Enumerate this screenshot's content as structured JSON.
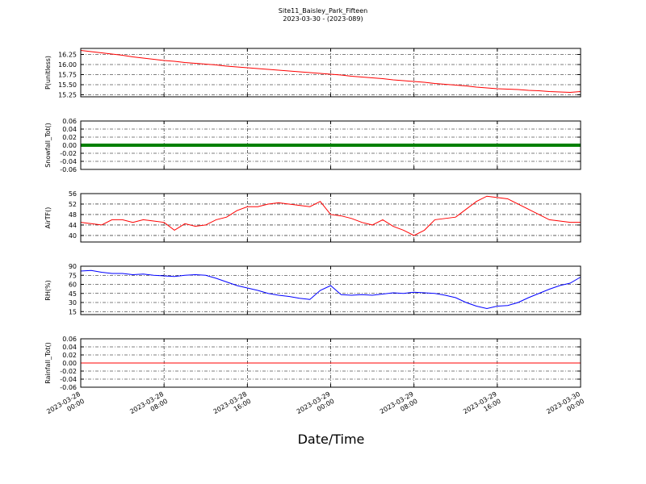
{
  "chart_data": [
    {
      "type": "line",
      "title": "Site11_Baisley_Park_Fifteen",
      "subtitle": "2023-03-30 - (2023-089)",
      "ylabel": "P(unitless)",
      "color": "#ff0000",
      "x": [
        "2023-03-28 00:00",
        "2023-03-28 01:00",
        "2023-03-28 02:00",
        "2023-03-28 03:00",
        "2023-03-28 04:00",
        "2023-03-28 05:00",
        "2023-03-28 06:00",
        "2023-03-28 07:00",
        "2023-03-28 08:00",
        "2023-03-28 09:00",
        "2023-03-28 10:00",
        "2023-03-28 11:00",
        "2023-03-28 12:00",
        "2023-03-28 13:00",
        "2023-03-28 14:00",
        "2023-03-28 15:00",
        "2023-03-28 16:00",
        "2023-03-28 17:00",
        "2023-03-28 18:00",
        "2023-03-28 19:00",
        "2023-03-28 20:00",
        "2023-03-28 21:00",
        "2023-03-28 22:00",
        "2023-03-28 23:00",
        "2023-03-29 00:00",
        "2023-03-29 01:00",
        "2023-03-29 02:00",
        "2023-03-29 03:00",
        "2023-03-29 04:00",
        "2023-03-29 05:00",
        "2023-03-29 06:00",
        "2023-03-29 07:00",
        "2023-03-29 08:00",
        "2023-03-29 09:00",
        "2023-03-29 10:00",
        "2023-03-29 11:00",
        "2023-03-29 12:00",
        "2023-03-29 13:00",
        "2023-03-29 14:00",
        "2023-03-29 15:00",
        "2023-03-29 16:00",
        "2023-03-29 17:00",
        "2023-03-29 18:00",
        "2023-03-29 19:00",
        "2023-03-29 20:00",
        "2023-03-29 21:00",
        "2023-03-29 22:00",
        "2023-03-29 23:00",
        "2023-03-30 00:00"
      ],
      "values": [
        16.35,
        16.32,
        16.29,
        16.26,
        16.23,
        16.19,
        16.16,
        16.13,
        16.1,
        16.08,
        16.05,
        16.03,
        16.01,
        15.99,
        15.96,
        15.94,
        15.92,
        15.9,
        15.88,
        15.86,
        15.84,
        15.82,
        15.8,
        15.78,
        15.76,
        15.74,
        15.71,
        15.69,
        15.67,
        15.65,
        15.62,
        15.6,
        15.58,
        15.56,
        15.53,
        15.51,
        15.49,
        15.47,
        15.44,
        15.42,
        15.4,
        15.39,
        15.38,
        15.36,
        15.35,
        15.33,
        15.32,
        15.31,
        15.33
      ],
      "ylim": [
        15.2,
        16.4
      ],
      "yticks": [
        15.25,
        {
          "value": 15.5,
          "label": "15.50"
        },
        15.75,
        {
          "value": 16,
          "label": "16.00"
        },
        16.25
      ],
      "grid": true
    },
    {
      "type": "line",
      "ylabel": "Snowfall_Tot()",
      "color": "#008000",
      "x": [
        "2023-03-28 00:00",
        "2023-03-28 01:00",
        "2023-03-28 02:00",
        "2023-03-28 03:00",
        "2023-03-28 04:00",
        "2023-03-28 05:00",
        "2023-03-28 06:00",
        "2023-03-28 07:00",
        "2023-03-28 08:00",
        "2023-03-28 09:00",
        "2023-03-28 10:00",
        "2023-03-28 11:00",
        "2023-03-28 12:00",
        "2023-03-28 13:00",
        "2023-03-28 14:00",
        "2023-03-28 15:00",
        "2023-03-28 16:00",
        "2023-03-28 17:00",
        "2023-03-28 18:00",
        "2023-03-28 19:00",
        "2023-03-28 20:00",
        "2023-03-28 21:00",
        "2023-03-28 22:00",
        "2023-03-28 23:00",
        "2023-03-29 00:00",
        "2023-03-29 01:00",
        "2023-03-29 02:00",
        "2023-03-29 03:00",
        "2023-03-29 04:00",
        "2023-03-29 05:00",
        "2023-03-29 06:00",
        "2023-03-29 07:00",
        "2023-03-29 08:00",
        "2023-03-29 09:00",
        "2023-03-29 10:00",
        "2023-03-29 11:00",
        "2023-03-29 12:00",
        "2023-03-29 13:00",
        "2023-03-29 14:00",
        "2023-03-29 15:00",
        "2023-03-29 16:00",
        "2023-03-29 17:00",
        "2023-03-29 18:00",
        "2023-03-29 19:00",
        "2023-03-29 20:00",
        "2023-03-29 21:00",
        "2023-03-29 22:00",
        "2023-03-29 23:00",
        "2023-03-30 00:00"
      ],
      "values": [
        0,
        0,
        0,
        0,
        0,
        0,
        0,
        0,
        0,
        0,
        0,
        0,
        0,
        0,
        0,
        0,
        0,
        0,
        0,
        0,
        0,
        0,
        0,
        0,
        0,
        0,
        0,
        0,
        0,
        0,
        0,
        0,
        0,
        0,
        0,
        0,
        0,
        0,
        0,
        0,
        0,
        0,
        0,
        0,
        0,
        0,
        0,
        0,
        0
      ],
      "ylim": [
        -0.06,
        0.06
      ],
      "yticks": [
        -0.06,
        -0.04,
        -0.02,
        {
          "value": 0,
          "label": "0.00"
        },
        0.02,
        0.04,
        0.06
      ],
      "grid": true
    },
    {
      "type": "line",
      "ylabel": "AirTF()",
      "color": "#ff0000",
      "x": [
        "2023-03-28 00:00",
        "2023-03-28 01:00",
        "2023-03-28 02:00",
        "2023-03-28 03:00",
        "2023-03-28 04:00",
        "2023-03-28 05:00",
        "2023-03-28 06:00",
        "2023-03-28 07:00",
        "2023-03-28 08:00",
        "2023-03-28 09:00",
        "2023-03-28 10:00",
        "2023-03-28 11:00",
        "2023-03-28 12:00",
        "2023-03-28 13:00",
        "2023-03-28 14:00",
        "2023-03-28 15:00",
        "2023-03-28 16:00",
        "2023-03-28 17:00",
        "2023-03-28 18:00",
        "2023-03-28 19:00",
        "2023-03-28 20:00",
        "2023-03-28 21:00",
        "2023-03-28 22:00",
        "2023-03-28 23:00",
        "2023-03-29 00:00",
        "2023-03-29 01:00",
        "2023-03-29 02:00",
        "2023-03-29 03:00",
        "2023-03-29 04:00",
        "2023-03-29 05:00",
        "2023-03-29 06:00",
        "2023-03-29 07:00",
        "2023-03-29 08:00",
        "2023-03-29 09:00",
        "2023-03-29 10:00",
        "2023-03-29 11:00",
        "2023-03-29 12:00",
        "2023-03-29 13:00",
        "2023-03-29 14:00",
        "2023-03-29 15:00",
        "2023-03-29 16:00",
        "2023-03-29 17:00",
        "2023-03-29 18:00",
        "2023-03-29 19:00",
        "2023-03-29 20:00",
        "2023-03-29 21:00",
        "2023-03-29 22:00",
        "2023-03-29 23:00",
        "2023-03-30 00:00"
      ],
      "values": [
        45,
        44.5,
        44,
        46,
        46,
        45,
        46,
        45.5,
        45,
        42,
        44.5,
        43.5,
        44,
        46,
        47,
        49.5,
        51,
        51,
        52,
        52.5,
        52,
        51.5,
        51,
        53,
        48,
        47.5,
        46.5,
        45,
        44,
        46,
        43.5,
        42,
        40,
        42,
        46,
        46.5,
        47,
        50,
        53,
        55,
        54.5,
        54,
        52,
        50,
        48,
        46,
        45.5,
        45,
        45
      ],
      "ylim": [
        37.5,
        56
      ],
      "yticks": [
        40,
        44,
        48,
        52,
        56
      ],
      "grid": true
    },
    {
      "type": "line",
      "ylabel": "RH(%)",
      "color": "#0000ff",
      "x": [
        "2023-03-28 00:00",
        "2023-03-28 01:00",
        "2023-03-28 02:00",
        "2023-03-28 03:00",
        "2023-03-28 04:00",
        "2023-03-28 05:00",
        "2023-03-28 06:00",
        "2023-03-28 07:00",
        "2023-03-28 08:00",
        "2023-03-28 09:00",
        "2023-03-28 10:00",
        "2023-03-28 11:00",
        "2023-03-28 12:00",
        "2023-03-28 13:00",
        "2023-03-28 14:00",
        "2023-03-28 15:00",
        "2023-03-28 16:00",
        "2023-03-28 17:00",
        "2023-03-28 18:00",
        "2023-03-28 19:00",
        "2023-03-28 20:00",
        "2023-03-28 21:00",
        "2023-03-28 22:00",
        "2023-03-28 23:00",
        "2023-03-29 00:00",
        "2023-03-29 01:00",
        "2023-03-29 02:00",
        "2023-03-29 03:00",
        "2023-03-29 04:00",
        "2023-03-29 05:00",
        "2023-03-29 06:00",
        "2023-03-29 07:00",
        "2023-03-29 08:00",
        "2023-03-29 09:00",
        "2023-03-29 10:00",
        "2023-03-29 11:00",
        "2023-03-29 12:00",
        "2023-03-29 13:00",
        "2023-03-29 14:00",
        "2023-03-29 15:00",
        "2023-03-29 16:00",
        "2023-03-29 17:00",
        "2023-03-29 18:00",
        "2023-03-29 19:00",
        "2023-03-29 20:00",
        "2023-03-29 21:00",
        "2023-03-29 22:00",
        "2023-03-29 23:00",
        "2023-03-30 00:00"
      ],
      "values": [
        82,
        83,
        80,
        78,
        78,
        76,
        77,
        75,
        74,
        73,
        75,
        76,
        75,
        70,
        64,
        58,
        54,
        50,
        45,
        42,
        40,
        37,
        35,
        50,
        58,
        43,
        42,
        43,
        42,
        44,
        46,
        45,
        47,
        46,
        45,
        42,
        38,
        30,
        24,
        20,
        24,
        25,
        30,
        38,
        45,
        52,
        58,
        62,
        72
      ],
      "ylim": [
        10,
        90
      ],
      "yticks": [
        15,
        30,
        45,
        60,
        75,
        90
      ],
      "grid": true
    },
    {
      "type": "line",
      "ylabel": "Rainfall_Tot()",
      "xlabel": "Date/Time",
      "color": "#ff0000",
      "x": [
        "2023-03-28 00:00",
        "2023-03-28 01:00",
        "2023-03-28 02:00",
        "2023-03-28 03:00",
        "2023-03-28 04:00",
        "2023-03-28 05:00",
        "2023-03-28 06:00",
        "2023-03-28 07:00",
        "2023-03-28 08:00",
        "2023-03-28 09:00",
        "2023-03-28 10:00",
        "2023-03-28 11:00",
        "2023-03-28 12:00",
        "2023-03-28 13:00",
        "2023-03-28 14:00",
        "2023-03-28 15:00",
        "2023-03-28 16:00",
        "2023-03-28 17:00",
        "2023-03-28 18:00",
        "2023-03-28 19:00",
        "2023-03-28 20:00",
        "2023-03-28 21:00",
        "2023-03-28 22:00",
        "2023-03-28 23:00",
        "2023-03-29 00:00",
        "2023-03-29 01:00",
        "2023-03-29 02:00",
        "2023-03-29 03:00",
        "2023-03-29 04:00",
        "2023-03-29 05:00",
        "2023-03-29 06:00",
        "2023-03-29 07:00",
        "2023-03-29 08:00",
        "2023-03-29 09:00",
        "2023-03-29 10:00",
        "2023-03-29 11:00",
        "2023-03-29 12:00",
        "2023-03-29 13:00",
        "2023-03-29 14:00",
        "2023-03-29 15:00",
        "2023-03-29 16:00",
        "2023-03-29 17:00",
        "2023-03-29 18:00",
        "2023-03-29 19:00",
        "2023-03-29 20:00",
        "2023-03-29 21:00",
        "2023-03-29 22:00",
        "2023-03-29 23:00",
        "2023-03-30 00:00"
      ],
      "values": [
        0,
        0,
        0,
        0,
        0,
        0,
        0,
        0,
        0,
        0,
        0,
        0,
        0,
        0,
        0,
        0,
        0,
        0,
        0,
        0,
        0,
        0,
        0,
        0,
        0,
        0,
        0,
        0,
        0,
        0,
        0,
        0,
        0,
        0,
        0,
        0,
        0,
        0,
        0,
        0,
        0,
        0,
        0,
        0,
        0,
        0,
        0,
        0,
        0
      ],
      "ylim": [
        -0.06,
        0.06
      ],
      "yticks": [
        -0.06,
        -0.04,
        -0.02,
        {
          "value": 0,
          "label": "0.00"
        },
        0.02,
        0.04,
        0.06
      ],
      "grid": true,
      "xlim": [
        "2023-03-28 00:00",
        "2023-03-30 00:00"
      ],
      "xticks": [
        "2023-03-28 00:00",
        "2023-03-28 08:00",
        "2023-03-28 16:00",
        "2023-03-29 00:00",
        "2023-03-29 08:00",
        "2023-03-29 16:00",
        "2023-03-30 00:00"
      ]
    }
  ]
}
